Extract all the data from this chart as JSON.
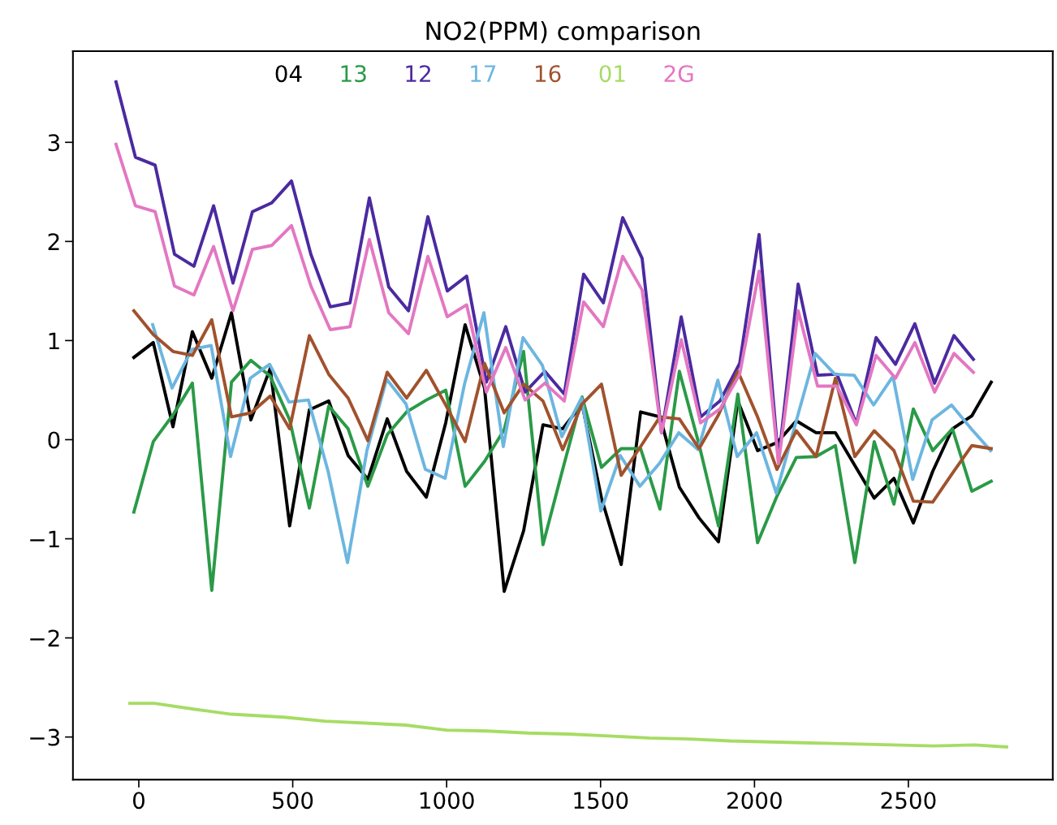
{
  "chart_data": {
    "type": "line",
    "title": "NO2(PPM) comparison",
    "xlim": [
      -214,
      2969
    ],
    "ylim": [
      -3.43,
      3.92
    ],
    "xticks": [
      0,
      500,
      1000,
      1500,
      2000,
      2500
    ],
    "yticks": [
      -3,
      -2,
      -1,
      0,
      1,
      2,
      3
    ],
    "grid": false,
    "legend": "top",
    "marker": "none",
    "line_style": "solid",
    "series": [
      {
        "name": "04",
        "color": "#000000",
        "x": [
          -16,
          47,
          111,
          174,
          237,
          301,
          364,
          427,
          490,
          554,
          617,
          680,
          744,
          807,
          870,
          934,
          997,
          1060,
          1123,
          1187,
          1250,
          1313,
          1377,
          1440,
          1503,
          1567,
          1630,
          1693,
          1756,
          1820,
          1883,
          1946,
          2010,
          2073,
          2136,
          2200,
          2263,
          2326,
          2389,
          2453,
          2516,
          2579,
          2643,
          2706,
          2769
        ],
        "values": [
          0.83,
          0.98,
          0.13,
          1.09,
          0.62,
          1.28,
          0.2,
          0.72,
          -0.87,
          0.3,
          0.39,
          -0.16,
          -0.4,
          0.21,
          -0.32,
          -0.58,
          0.17,
          1.16,
          0.52,
          -1.53,
          -0.92,
          0.15,
          0.11,
          0.36,
          -0.59,
          -1.26,
          0.28,
          0.23,
          -0.48,
          -0.79,
          -1.03,
          0.39,
          -0.11,
          -0.03,
          0.19,
          0.07,
          0.07,
          -0.26,
          -0.59,
          -0.39,
          -0.84,
          -0.32,
          0.11,
          0.24,
          0.58
        ]
      },
      {
        "name": "13",
        "color": "#2a9a47",
        "x": [
          -16,
          47,
          111,
          174,
          237,
          301,
          364,
          427,
          490,
          554,
          617,
          680,
          744,
          807,
          870,
          934,
          997,
          1060,
          1123,
          1187,
          1250,
          1313,
          1377,
          1440,
          1503,
          1567,
          1630,
          1693,
          1756,
          1820,
          1883,
          1946,
          2010,
          2073,
          2136,
          2200,
          2263,
          2326,
          2389,
          2453,
          2516,
          2579,
          2643,
          2706,
          2769
        ],
        "values": [
          -0.73,
          -0.02,
          0.25,
          0.57,
          -1.52,
          0.58,
          0.8,
          0.64,
          0.2,
          -0.69,
          0.34,
          0.11,
          -0.47,
          0.05,
          0.28,
          0.4,
          0.5,
          -0.47,
          -0.22,
          0.1,
          0.89,
          -1.06,
          -0.3,
          0.43,
          -0.28,
          -0.09,
          -0.09,
          -0.7,
          0.69,
          -0.05,
          -0.87,
          0.46,
          -1.04,
          -0.57,
          -0.18,
          -0.17,
          -0.06,
          -1.24,
          -0.02,
          -0.65,
          0.31,
          -0.11,
          0.11,
          -0.52,
          -0.42
        ]
      },
      {
        "name": "12",
        "color": "#4b2aa0",
        "x": [
          -74,
          -11,
          53,
          116,
          179,
          243,
          306,
          369,
          432,
          496,
          559,
          622,
          686,
          749,
          812,
          876,
          939,
          1002,
          1065,
          1129,
          1192,
          1255,
          1319,
          1382,
          1445,
          1509,
          1572,
          1635,
          1698,
          1762,
          1825,
          1888,
          1952,
          2015,
          2078,
          2142,
          2205,
          2268,
          2331,
          2395,
          2458,
          2521,
          2585,
          2648,
          2711
        ],
        "values": [
          3.61,
          2.85,
          2.77,
          1.87,
          1.75,
          2.36,
          1.58,
          2.3,
          2.39,
          2.61,
          1.87,
          1.34,
          1.38,
          2.44,
          1.54,
          1.3,
          2.25,
          1.5,
          1.65,
          0.58,
          1.14,
          0.48,
          0.69,
          0.46,
          1.67,
          1.38,
          2.24,
          1.83,
          0.07,
          1.24,
          0.23,
          0.39,
          0.77,
          2.07,
          -0.21,
          1.57,
          0.65,
          0.66,
          0.16,
          1.03,
          0.76,
          1.17,
          0.57,
          1.05,
          0.81
        ]
      },
      {
        "name": "17",
        "color": "#6cb6e0",
        "x": [
          45,
          108,
          172,
          235,
          298,
          362,
          425,
          488,
          551,
          615,
          678,
          741,
          805,
          868,
          931,
          995,
          1058,
          1121,
          1184,
          1248,
          1311,
          1374,
          1438,
          1501,
          1564,
          1628,
          1691,
          1754,
          1817,
          1881,
          1944,
          2007,
          2071,
          2134,
          2197,
          2261,
          2324,
          2387,
          2450,
          2514,
          2577,
          2640,
          2704,
          2767
        ],
        "values": [
          1.16,
          0.52,
          0.91,
          0.95,
          -0.17,
          0.62,
          0.76,
          0.38,
          0.4,
          -0.32,
          -1.24,
          -0.11,
          0.61,
          0.36,
          -0.3,
          -0.39,
          0.56,
          1.28,
          -0.07,
          1.03,
          0.75,
          0.03,
          0.42,
          -0.72,
          -0.16,
          -0.47,
          -0.24,
          0.07,
          -0.1,
          0.6,
          -0.17,
          0.07,
          -0.54,
          0.17,
          0.87,
          0.66,
          0.65,
          0.35,
          0.64,
          -0.4,
          0.2,
          0.35,
          0.11,
          -0.11
        ]
      },
      {
        "name": "16",
        "color": "#a0522d",
        "x": [
          -16,
          47,
          111,
          174,
          237,
          301,
          364,
          427,
          490,
          554,
          617,
          680,
          744,
          807,
          870,
          934,
          997,
          1060,
          1123,
          1187,
          1250,
          1313,
          1377,
          1440,
          1503,
          1567,
          1630,
          1693,
          1756,
          1820,
          1883,
          1946,
          2010,
          2073,
          2136,
          2200,
          2263,
          2326,
          2389,
          2453,
          2516,
          2579,
          2643,
          2706,
          2769
        ],
        "values": [
          1.3,
          1.06,
          0.89,
          0.85,
          1.21,
          0.23,
          0.27,
          0.44,
          0.11,
          1.05,
          0.66,
          0.42,
          -0.01,
          0.68,
          0.42,
          0.7,
          0.35,
          -0.02,
          0.77,
          0.27,
          0.56,
          0.39,
          -0.1,
          0.36,
          0.56,
          -0.36,
          -0.07,
          0.23,
          0.21,
          -0.09,
          0.25,
          0.69,
          0.23,
          -0.3,
          0.09,
          -0.17,
          0.62,
          -0.17,
          0.09,
          -0.11,
          -0.62,
          -0.63,
          -0.34,
          -0.06,
          -0.09
        ]
      },
      {
        "name": "01",
        "color": "#a6dc64",
        "x": [
          -29,
          50,
          182,
          301,
          472,
          604,
          736,
          868,
          999,
          1131,
          1263,
          1395,
          1527,
          1659,
          1791,
          1922,
          2054,
          2186,
          2318,
          2450,
          2582,
          2714,
          2819
        ],
        "values": [
          -2.66,
          -2.66,
          -2.72,
          -2.77,
          -2.8,
          -2.84,
          -2.86,
          -2.88,
          -2.93,
          -2.94,
          -2.96,
          -2.97,
          -2.99,
          -3.01,
          -3.02,
          -3.04,
          -3.05,
          -3.06,
          -3.07,
          -3.08,
          -3.09,
          -3.08,
          -3.1
        ]
      },
      {
        "name": "2G",
        "color": "#e377c2",
        "x": [
          -74,
          -11,
          53,
          116,
          179,
          243,
          306,
          369,
          432,
          496,
          559,
          622,
          686,
          749,
          812,
          876,
          939,
          1002,
          1065,
          1129,
          1192,
          1255,
          1319,
          1382,
          1445,
          1509,
          1572,
          1635,
          1698,
          1762,
          1825,
          1888,
          1952,
          2015,
          2078,
          2142,
          2205,
          2268,
          2331,
          2395,
          2458,
          2521,
          2585,
          2648,
          2711
        ],
        "values": [
          2.98,
          2.36,
          2.3,
          1.55,
          1.46,
          1.95,
          1.3,
          1.92,
          1.96,
          2.16,
          1.55,
          1.11,
          1.14,
          2.02,
          1.28,
          1.07,
          1.85,
          1.24,
          1.36,
          0.48,
          0.93,
          0.4,
          0.57,
          0.39,
          1.39,
          1.14,
          1.85,
          1.51,
          0.07,
          1.01,
          0.17,
          0.31,
          0.66,
          1.7,
          -0.24,
          1.3,
          0.54,
          0.54,
          0.15,
          0.85,
          0.62,
          0.98,
          0.48,
          0.87,
          0.68
        ]
      }
    ]
  }
}
